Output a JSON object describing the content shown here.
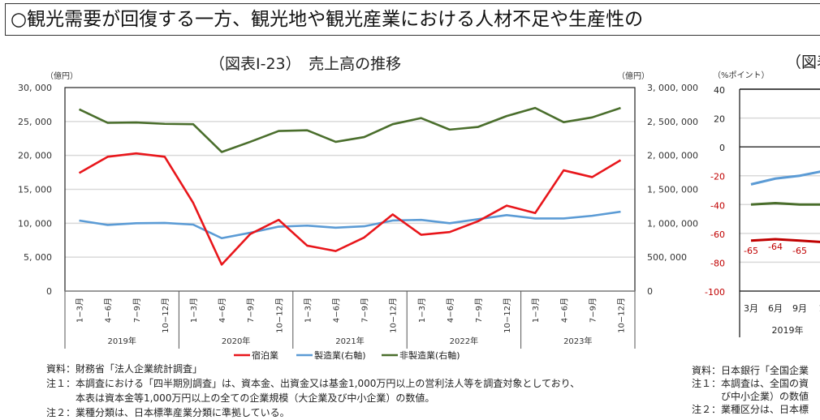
{
  "headline": "○観光需要が回復する一方、観光地や観光産業における人材不足や生産性の",
  "chart_data": [
    {
      "type": "line",
      "title": "（図表Ⅰ-23）　売上高の推移",
      "y_left_unit": "（億円）",
      "y_right_unit": "（億円）",
      "ylim_left": [
        0,
        30000
      ],
      "ylim_right": [
        0,
        3000000
      ],
      "yticks_left": [
        "30, 000",
        "25, 000",
        "20, 000",
        "15, 000",
        "10, 000",
        "5, 000",
        "0"
      ],
      "yticks_right": [
        "3, 000, 000",
        "2, 500, 000",
        "2, 000, 000",
        "1, 500, 000",
        "1, 000, 000",
        "500, 000",
        "0"
      ],
      "grid": true,
      "quarters": [
        "1−3月",
        "4−6月",
        "7−9月",
        "10−12月"
      ],
      "years": [
        "2019年",
        "2020年",
        "2021年",
        "2022年",
        "2023年"
      ],
      "legend_position": "bottom",
      "series": [
        {
          "name": "宿泊業",
          "axis": "left",
          "color": "#e8161b",
          "values": [
            17400,
            19800,
            20300,
            19800,
            13000,
            3900,
            8400,
            10500,
            6700,
            5900,
            7900,
            11300,
            8300,
            8700,
            10300,
            12600,
            11500,
            17800,
            16800,
            19300
          ]
        },
        {
          "name": "製造業(右軸)",
          "axis": "right",
          "color": "#5b9bd5",
          "values": [
            1040000,
            975000,
            1000000,
            1005000,
            980000,
            780000,
            860000,
            950000,
            965000,
            935000,
            955000,
            1040000,
            1050000,
            1000000,
            1060000,
            1120000,
            1070000,
            1070000,
            1110000,
            1170000
          ]
        },
        {
          "name": "非製造業(右軸)",
          "axis": "right",
          "color": "#4a6e2c",
          "values": [
            2680000,
            2480000,
            2485000,
            2465000,
            2460000,
            2050000,
            2200000,
            2360000,
            2370000,
            2200000,
            2270000,
            2460000,
            2550000,
            2380000,
            2420000,
            2580000,
            2700000,
            2490000,
            2560000,
            2700000
          ]
        }
      ]
    },
    {
      "type": "line",
      "title": "（図表",
      "y_unit": "（%ポイント）",
      "ylim": [
        -100,
        40
      ],
      "yticks": [
        "40",
        "20",
        "0",
        "-20",
        "-40",
        "-60",
        "-80",
        "-100"
      ],
      "x": [
        "3月",
        "6月",
        "9月",
        "1"
      ],
      "years": [
        "2019年"
      ],
      "series": [
        {
          "color": "#5b9bd5",
          "values": [
            -26,
            -22,
            -20,
            -17
          ]
        },
        {
          "color": "#4a6e2c",
          "values": [
            -40,
            -39,
            -40,
            -40
          ]
        },
        {
          "color": "#c00000",
          "values": [
            -65,
            -64,
            -65,
            -66
          ],
          "labels": [
            "-65",
            "-64",
            "-65",
            "-"
          ]
        }
      ]
    }
  ],
  "notes_left": [
    "資料：財務省「法人企業統計調査」",
    "注１：本調査における「四半期別調査」は、資本金、出資金又は基金1,000万円以上の営利法人等を調査対象としており、",
    "　　　本表は資本金等1,000万円以上の全ての企業規模（大企業及び中小企業）の数値。",
    "注２：業種分類は、日本標準産業分類に準拠している。"
  ],
  "notes_right": [
    "資料：日本銀行「全国企業",
    "注１：本調査は、全国の資",
    "　　　び中小企業）の数値",
    "注２：業種区分は、日本標"
  ]
}
